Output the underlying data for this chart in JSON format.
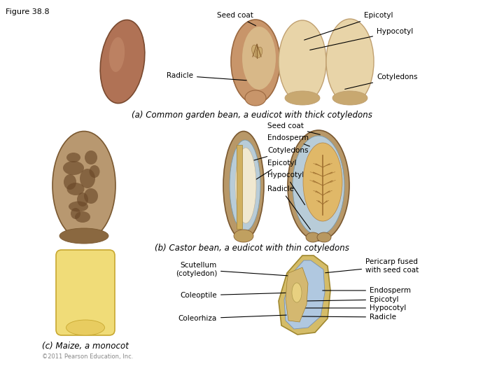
{
  "figure_label": "Figure 38.8",
  "bg": "#ffffff",
  "tc": "#000000",
  "caption_a": "(a) Common garden bean, a eudicot with thick cotyledons",
  "caption_b": "(b) Castor bean, a eudicot with thin cotyledons",
  "caption_c": "(c) Maize, a monocot",
  "copyright": "©2011 Pearson Education, Inc.",
  "fs_label": 7.5,
  "fs_caption": 8.5,
  "fs_fig": 8,
  "colors": {
    "bean_brown": "#b07255",
    "bean_brown_edge": "#7a4a30",
    "seed_coat_tan": "#c8956a",
    "seed_coat_edge": "#9a6840",
    "cotyledon_light": "#e8d4a8",
    "cotyledon_edge": "#c0a070",
    "embryo_tan": "#c8a870",
    "castor_outer": "#a08060",
    "castor_spot": "#6a4828",
    "castor_blue": "#b8ccd8",
    "castor_blue_edge": "#7898a8",
    "castor_cream": "#f0e8d0",
    "castor_thin_cot": "#d4b878",
    "castor_right_bg": "#c8b080",
    "castor_right_inner": "#e0c890",
    "castor_vein": "#a07030",
    "corn_yellow": "#f0dc78",
    "corn_yellow_edge": "#c8a830",
    "corn_pericarp": "#d4bc68",
    "corn_blue": "#b0c8e0",
    "corn_blue_edge": "#7890b0",
    "corn_embryo": "#d4b870"
  }
}
